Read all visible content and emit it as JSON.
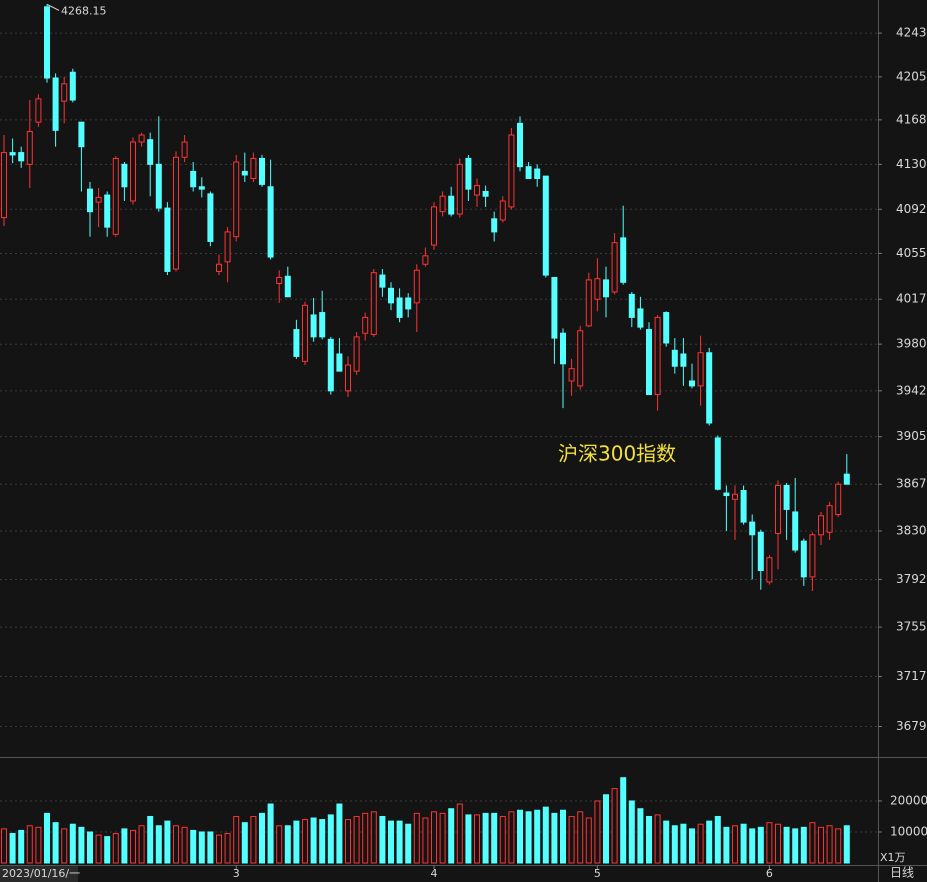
{
  "chart_data": [
    {
      "type": "candlestick",
      "title": "沪深300指数",
      "log_scale": true,
      "grid": true,
      "up_color": "#ff3232",
      "down_color": "#54ffff",
      "categories": [
        "2023/01/16/一",
        null,
        null,
        null,
        null,
        null,
        null,
        null,
        null,
        null,
        null,
        null,
        null,
        null,
        null,
        null,
        null,
        null,
        null,
        null,
        null,
        null,
        null,
        null,
        null,
        null,
        null,
        "3",
        null,
        null,
        null,
        null,
        null,
        null,
        null,
        null,
        null,
        null,
        null,
        null,
        null,
        null,
        null,
        null,
        null,
        null,
        null,
        null,
        null,
        null,
        "4",
        null,
        null,
        null,
        null,
        null,
        null,
        null,
        null,
        null,
        null,
        null,
        null,
        null,
        null,
        null,
        null,
        null,
        null,
        "5",
        null,
        null,
        null,
        null,
        null,
        null,
        null,
        null,
        null,
        null,
        null,
        null,
        null,
        null,
        null,
        null,
        null,
        null,
        null,
        "6",
        null,
        null,
        null,
        null,
        null,
        null,
        null,
        null,
        null
      ],
      "open": [
        4085,
        4140,
        4140,
        4130,
        4166,
        4266,
        4204,
        4184,
        4209,
        4166,
        4109,
        4098,
        4104,
        4071,
        4130,
        4099,
        4149,
        4151,
        4130,
        4093,
        4042,
        4136,
        4124,
        4111,
        4105,
        4040,
        4048,
        4069,
        4124,
        4118,
        4135,
        4111,
        4030,
        4036,
        3992,
        3966,
        4004,
        4006,
        3984,
        3972,
        3942,
        3958,
        3989,
        3988,
        4037,
        4026,
        4018,
        4018,
        4014,
        4046,
        4062,
        4090,
        4103,
        4088,
        4135,
        4104,
        4107,
        4084,
        4083,
        4094,
        4165,
        4128,
        4126,
        4120,
        4035,
        3989,
        3950,
        3946,
        3995,
        4017,
        4033,
        4023,
        4068,
        4021,
        4009,
        3992,
        3939,
        4006,
        3975,
        3972,
        3950,
        3946,
        3973,
        3904,
        3860,
        3855,
        3862,
        3837,
        3829,
        3790,
        3828,
        3866,
        3845,
        3822,
        3794,
        3827,
        3829,
        3843,
        3875
      ],
      "high": [
        4155,
        4152,
        4145,
        4185,
        4190,
        4268.15,
        4208,
        4205,
        4212,
        4166,
        4115,
        4110,
        4107,
        4137,
        4132,
        4153,
        4157,
        4157,
        4171,
        4098,
        4141,
        4155,
        4132,
        4119,
        4107,
        4054,
        4077,
        4138,
        4140,
        4140,
        4138,
        4134,
        4041,
        4044,
        4000,
        4015,
        4018,
        4024,
        3986,
        3985,
        3970,
        3990,
        4006,
        4042,
        4042,
        4031,
        4026,
        4022,
        4046,
        4060,
        4098,
        4107,
        4111,
        4135,
        4138,
        4118,
        4112,
        4090,
        4103,
        4161,
        4171,
        4132,
        4130,
        4120,
        4035,
        3993,
        3968,
        3995,
        4039,
        4051,
        4044,
        4072,
        4095,
        4023,
        4019,
        3998,
        4004,
        4007,
        3985,
        3985,
        3964,
        3987,
        3977,
        3906,
        3866,
        3866,
        3866,
        3843,
        3831,
        3811,
        3870,
        3868,
        3872,
        3824,
        3829,
        3845,
        3853,
        3869,
        3891
      ],
      "low": [
        4078,
        4131,
        4127,
        4110,
        4162,
        4200,
        4145,
        4165,
        4183,
        4107,
        4069,
        4077,
        4069,
        4069,
        4099,
        4096,
        4145,
        4103,
        4090,
        4037,
        4040,
        4132,
        4107,
        4102,
        4061,
        4037,
        4031,
        4065,
        4115,
        4115,
        4111,
        4050,
        4014,
        4019,
        3968,
        3963,
        3982,
        3984,
        3939,
        3958,
        3937,
        3955,
        3983,
        3986,
        4019,
        4008,
        3998,
        4002,
        3990,
        4044,
        4058,
        4086,
        4086,
        4085,
        4099,
        4094,
        4094,
        4065,
        4081,
        4092,
        4124,
        4118,
        4111,
        4035,
        3964,
        3928,
        3938,
        3943,
        3994,
        4007,
        4002,
        4021,
        4029,
        3994,
        3992,
        3939,
        3926,
        3978,
        3956,
        3946,
        3944,
        3930,
        3914,
        3862,
        3830,
        3823,
        3835,
        3792,
        3784,
        3788,
        3800,
        3823,
        3813,
        3787,
        3783,
        3819,
        3823,
        3841,
        3867
      ],
      "close": [
        4140,
        4138,
        4133,
        4158,
        4186,
        4204,
        4159,
        4199,
        4185,
        4145,
        4090,
        4102,
        4077,
        4135,
        4111,
        4149,
        4155,
        4130,
        4093,
        4040,
        4136,
        4149,
        4111,
        4109,
        4065,
        4046,
        4073,
        4132,
        4121,
        4135,
        4113,
        4052,
        4035,
        4019,
        3970,
        4012,
        3986,
        3986,
        3942,
        3958,
        3963,
        3986,
        4002,
        4039,
        4027,
        4014,
        4002,
        4009,
        4041,
        4053,
        4094,
        4103,
        4088,
        4130,
        4109,
        4112,
        4103,
        4073,
        4099,
        4155,
        4128,
        4118,
        4118,
        4037,
        3985,
        3964,
        3960,
        3991,
        4033,
        4034,
        4019,
        4064,
        4031,
        4002,
        3994,
        3939,
        4002,
        3981,
        3962,
        3962,
        3946,
        3973,
        3916,
        3863,
        3858,
        3859,
        3837,
        3827,
        3799,
        3809,
        3866,
        3847,
        3815,
        3794,
        3827,
        3842,
        3850,
        3867,
        3867
      ],
      "ylim": [
        3656,
        4272
      ],
      "yticks": [
        4243,
        4205,
        4168,
        4130,
        4092,
        4055,
        4017,
        3980,
        3942,
        3905,
        3867,
        3830,
        3792,
        3755,
        3717,
        3679
      ]
    },
    {
      "type": "bar",
      "unit": "X1万",
      "period": "日线",
      "values": [
        11000,
        9500,
        10500,
        12000,
        11500,
        16000,
        13000,
        11000,
        12500,
        11500,
        10000,
        9000,
        8500,
        9500,
        11000,
        10500,
        12000,
        15000,
        12000,
        13500,
        12000,
        11500,
        10500,
        10000,
        10000,
        9000,
        9500,
        15000,
        13000,
        15000,
        16000,
        19000,
        12000,
        12000,
        13500,
        14000,
        14500,
        14000,
        15500,
        19000,
        14000,
        15000,
        16000,
        16500,
        15000,
        13500,
        13500,
        12500,
        16000,
        14500,
        16500,
        16000,
        17500,
        19000,
        15500,
        15500,
        16000,
        16000,
        15000,
        16500,
        17000,
        16500,
        17000,
        18000,
        16000,
        17000,
        15000,
        16500,
        14500,
        20000,
        22000,
        24000,
        27500,
        20000,
        17500,
        15000,
        15500,
        13500,
        12000,
        12500,
        11000,
        12500,
        13500,
        15000,
        11500,
        12000,
        12500,
        11000,
        11500,
        13000,
        12500,
        11500,
        11000,
        11500,
        13000,
        11500,
        12000,
        11000,
        12000
      ],
      "ylim": [
        0,
        33200
      ],
      "yticks": [
        10000,
        20000
      ],
      "grid": true
    }
  ]
}
